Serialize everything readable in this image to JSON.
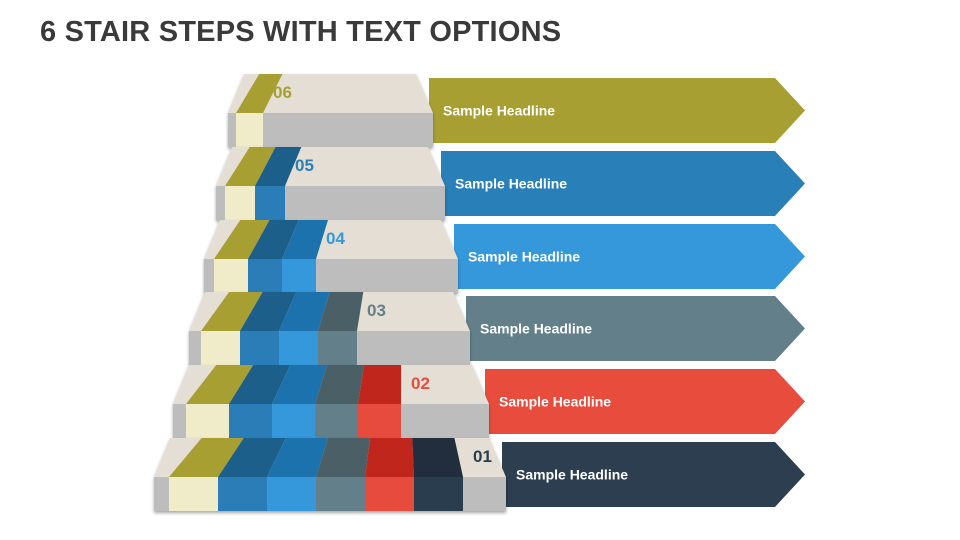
{
  "title": "6 STAIR STEPS WITH TEXT OPTIONS",
  "colors": {
    "step_top": "#E4DED4",
    "step_front": "#BDBDBD",
    "column_front": [
      "#F0EBC8",
      "#2A7DB7",
      "#3498DB",
      "#63808A",
      "#E74C3C",
      "#2C3E50"
    ],
    "column_top": [
      "#A89F32",
      "#1F5F8B",
      "#1F72AD",
      "#4B5F66",
      "#C0281A",
      "#212F3C"
    ]
  },
  "steps": [
    {
      "number": "06",
      "headline": "Sample Headline",
      "color": "#A89F32"
    },
    {
      "number": "05",
      "headline": "Sample Headline",
      "color": "#2980B9"
    },
    {
      "number": "04",
      "headline": "Sample Headline",
      "color": "#3498DB"
    },
    {
      "number": "03",
      "headline": "Sample Headline",
      "color": "#63808A"
    },
    {
      "number": "02",
      "headline": "Sample Headline",
      "color": "#E74C3C"
    },
    {
      "number": "01",
      "headline": "Sample Headline",
      "color": "#2C3E50"
    }
  ]
}
